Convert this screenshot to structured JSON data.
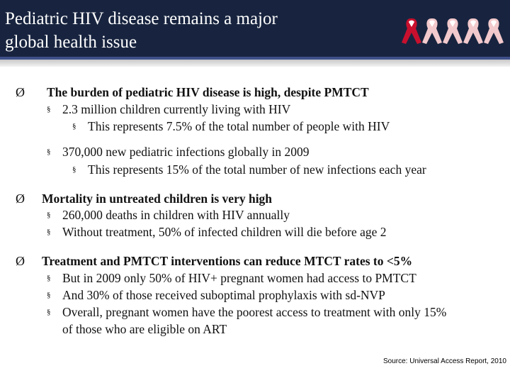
{
  "slide": {
    "title_line1": "Pediatric HIV disease remains a major",
    "title_line2": "global health issue",
    "bullet_symbol": "Ø",
    "sub_bullet_symbol": "§"
  },
  "points": [
    {
      "heading": "The burden of pediatric HIV disease is high, despite PMTCT",
      "items": [
        "2.3 million children currently living with HIV",
        "This represents 7.5% of the total number of people with HIV",
        "370,000 new pediatric infections globally in 2009",
        "This represents 15% of the total number of new infections each year"
      ]
    },
    {
      "heading": "Mortality in untreated children is very high",
      "items": [
        "260,000 deaths in children with HIV annually",
        "Without treatment, 50% of infected children will die before age 2"
      ]
    },
    {
      "heading": "Treatment and PMTCT interventions can reduce MTCT rates to <5%",
      "items": [
        "But in 2009 only 50% of HIV+ pregnant women had access to PMTCT",
        "And 30% of those received suboptimal prophylaxis with sd-NVP",
        "Overall, pregnant women have the poorest access to treatment with only 15%",
        "of those who are eligible on ART"
      ]
    }
  ],
  "source": "Source: Universal Access Report, 2010",
  "colors": {
    "header_bg": "#18243f",
    "accent_bar": "#3f4f8a",
    "ribbon_red": "#c8102e",
    "ribbon_light": "#f2c9cc"
  }
}
